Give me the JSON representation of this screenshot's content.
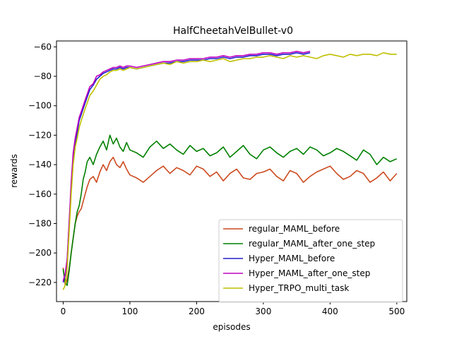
{
  "chart_data": {
    "type": "line",
    "title": "HalfCheetahVelBullet-v0",
    "xlabel": "episodes",
    "ylabel": "rewards",
    "xlim": [
      -10,
      515
    ],
    "ylim": [
      -233,
      -56
    ],
    "xticks": [
      0,
      100,
      200,
      300,
      400,
      500
    ],
    "yticks": [
      -220,
      -200,
      -180,
      -160,
      -140,
      -120,
      -100,
      -80,
      -60
    ],
    "grid": false,
    "legend_position": "lower right",
    "series": [
      {
        "name": "regular_MAML_before",
        "color": "#cc4a1f",
        "x": [
          0,
          3,
          6,
          9,
          12,
          15,
          18,
          21,
          24,
          27,
          30,
          33,
          36,
          40,
          45,
          50,
          55,
          60,
          65,
          70,
          75,
          80,
          85,
          90,
          95,
          100,
          110,
          120,
          130,
          140,
          150,
          160,
          170,
          180,
          190,
          200,
          210,
          220,
          230,
          240,
          250,
          260,
          270,
          280,
          290,
          300,
          310,
          320,
          330,
          340,
          350,
          360,
          370,
          380,
          390,
          400,
          410,
          420,
          430,
          440,
          450,
          460,
          470,
          480,
          490,
          500
        ],
        "values": [
          -210,
          -222,
          -218,
          -210,
          -200,
          -190,
          -180,
          -175,
          -172,
          -170,
          -165,
          -160,
          -155,
          -150,
          -148,
          -152,
          -145,
          -140,
          -144,
          -138,
          -135,
          -140,
          -142,
          -138,
          -143,
          -147,
          -149,
          -152,
          -148,
          -144,
          -141,
          -146,
          -142,
          -144,
          -147,
          -141,
          -143,
          -148,
          -145,
          -151,
          -146,
          -143,
          -149,
          -150,
          -146,
          -145,
          -143,
          -148,
          -151,
          -144,
          -146,
          -152,
          -148,
          -145,
          -143,
          -141,
          -146,
          -150,
          -148,
          -144,
          -146,
          -152,
          -149,
          -145,
          -151,
          -146
        ]
      },
      {
        "name": "regular_MAML_after_one_step",
        "color": "#008000",
        "x": [
          0,
          3,
          6,
          9,
          12,
          15,
          18,
          21,
          24,
          27,
          30,
          33,
          36,
          40,
          45,
          50,
          55,
          60,
          65,
          70,
          75,
          80,
          85,
          90,
          95,
          100,
          110,
          120,
          130,
          140,
          150,
          160,
          170,
          180,
          190,
          200,
          210,
          220,
          230,
          240,
          250,
          260,
          270,
          280,
          290,
          300,
          310,
          320,
          330,
          340,
          350,
          360,
          370,
          380,
          390,
          400,
          410,
          420,
          430,
          440,
          450,
          460,
          470,
          480,
          490,
          500
        ],
        "values": [
          -211,
          -220,
          -222,
          -212,
          -200,
          -190,
          -180,
          -172,
          -168,
          -160,
          -150,
          -145,
          -138,
          -135,
          -140,
          -133,
          -128,
          -124,
          -130,
          -120,
          -126,
          -122,
          -128,
          -131,
          -125,
          -130,
          -132,
          -135,
          -128,
          -124,
          -129,
          -126,
          -130,
          -133,
          -127,
          -131,
          -129,
          -134,
          -132,
          -128,
          -135,
          -131,
          -127,
          -133,
          -136,
          -130,
          -128,
          -132,
          -135,
          -131,
          -129,
          -133,
          -128,
          -130,
          -134,
          -132,
          -129,
          -131,
          -134,
          -137,
          -130,
          -133,
          -140,
          -135,
          -138,
          -136
        ]
      },
      {
        "name": "Hyper_MAML_before",
        "color": "#1f1fcc",
        "x": [
          0,
          3,
          6,
          9,
          12,
          15,
          18,
          21,
          24,
          27,
          30,
          33,
          36,
          40,
          45,
          50,
          55,
          60,
          65,
          70,
          75,
          80,
          85,
          90,
          95,
          100,
          110,
          120,
          130,
          140,
          150,
          160,
          170,
          180,
          190,
          200,
          210,
          220,
          230,
          240,
          250,
          260,
          270,
          280,
          290,
          300,
          310,
          320,
          330,
          340,
          350,
          360,
          370
        ],
        "values": [
          -220,
          -215,
          -205,
          -180,
          -155,
          -135,
          -125,
          -118,
          -110,
          -106,
          -102,
          -98,
          -94,
          -89,
          -86,
          -82,
          -80,
          -78,
          -77,
          -76,
          -75,
          -75,
          -74,
          -75,
          -74,
          -74,
          -75,
          -74,
          -73,
          -72,
          -71,
          -71,
          -70,
          -70,
          -69,
          -69,
          -69,
          -68,
          -68,
          -67,
          -68,
          -67,
          -67,
          -66,
          -66,
          -65,
          -65,
          -66,
          -65,
          -65,
          -64,
          -65,
          -64
        ]
      },
      {
        "name": "Hyper_MAML_after_one_step",
        "color": "#bf00bf",
        "x": [
          0,
          3,
          6,
          9,
          12,
          15,
          18,
          21,
          24,
          27,
          30,
          33,
          36,
          40,
          45,
          50,
          55,
          60,
          65,
          70,
          75,
          80,
          85,
          90,
          95,
          100,
          110,
          120,
          130,
          140,
          150,
          160,
          170,
          180,
          190,
          200,
          210,
          220,
          230,
          240,
          250,
          260,
          270,
          280,
          290,
          300,
          310,
          320,
          330,
          340,
          350,
          360,
          370
        ],
        "values": [
          -219,
          -214,
          -204,
          -178,
          -152,
          -132,
          -122,
          -115,
          -108,
          -104,
          -100,
          -96,
          -92,
          -87,
          -85,
          -80,
          -79,
          -77,
          -76,
          -75,
          -74,
          -74,
          -73,
          -74,
          -73,
          -73,
          -74,
          -73,
          -72,
          -71,
          -70,
          -70,
          -69,
          -69,
          -68,
          -68,
          -68,
          -67,
          -67,
          -66,
          -67,
          -66,
          -66,
          -65,
          -65,
          -64,
          -64,
          -65,
          -64,
          -64,
          -63,
          -64,
          -63
        ]
      },
      {
        "name": "Hyper_TRPO_multi_task",
        "color": "#bfbf00",
        "x": [
          0,
          3,
          6,
          9,
          12,
          15,
          18,
          21,
          24,
          27,
          30,
          33,
          36,
          40,
          45,
          50,
          55,
          60,
          65,
          70,
          75,
          80,
          85,
          90,
          95,
          100,
          110,
          120,
          130,
          140,
          150,
          160,
          170,
          180,
          190,
          200,
          210,
          220,
          230,
          240,
          250,
          260,
          270,
          280,
          290,
          300,
          310,
          320,
          330,
          340,
          350,
          360,
          370,
          380,
          390,
          400,
          410,
          420,
          430,
          440,
          450,
          460,
          470,
          480,
          490,
          500
        ],
        "values": [
          -225,
          -222,
          -210,
          -185,
          -160,
          -140,
          -128,
          -122,
          -115,
          -110,
          -106,
          -102,
          -98,
          -93,
          -90,
          -86,
          -82,
          -80,
          -79,
          -77,
          -76,
          -76,
          -75,
          -76,
          -75,
          -74,
          -75,
          -74,
          -73,
          -72,
          -71,
          -72,
          -70,
          -71,
          -70,
          -70,
          -69,
          -70,
          -69,
          -68,
          -70,
          -69,
          -68,
          -68,
          -67,
          -67,
          -66,
          -67,
          -68,
          -66,
          -67,
          -66,
          -67,
          -68,
          -66,
          -65,
          -66,
          -67,
          -65,
          -66,
          -65,
          -65,
          -66,
          -64,
          -65,
          -65
        ]
      }
    ]
  }
}
